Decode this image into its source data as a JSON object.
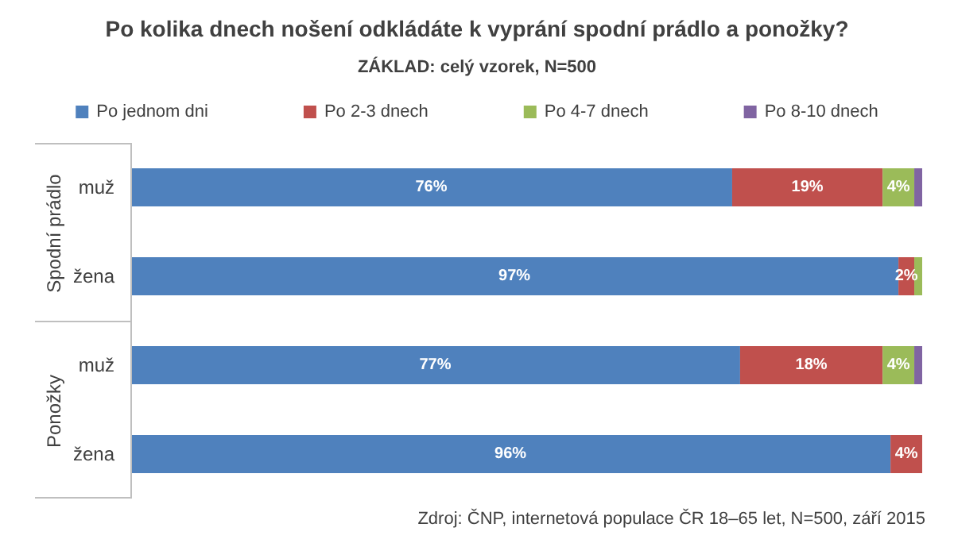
{
  "chart_data": {
    "type": "bar",
    "orientation": "horizontal",
    "stacked": true,
    "title": "Po kolika dnech nošení odkládáte k vyprání spodní prádlo a ponožky?",
    "subtitle": "ZÁKLAD: celý vzorek, N=500",
    "categories": [
      "muž",
      "žena",
      "muž",
      "žena"
    ],
    "xlim": [
      0,
      100
    ],
    "legend": "top",
    "series": [
      {
        "name": "Po jednom dni",
        "color": "#4f81bd",
        "values": [
          76,
          97,
          77,
          96
        ],
        "value_labels": [
          "76%",
          "97%",
          "77%",
          "96%"
        ]
      },
      {
        "name": "Po 2-3 dnech",
        "color": "#c0504d",
        "values": [
          19,
          2,
          18,
          4
        ],
        "value_labels": [
          "19%",
          "2%",
          "18%",
          "4%"
        ]
      },
      {
        "name": "Po 4-7 dnech",
        "color": "#9bbb59",
        "values": [
          4,
          1,
          4,
          0
        ],
        "value_labels": [
          "4%",
          null,
          "4%",
          null
        ]
      },
      {
        "name": "Po 8-10 dnech",
        "color": "#8064a2",
        "values": [
          1,
          0,
          1,
          0
        ],
        "value_labels": [
          null,
          null,
          null,
          null
        ]
      }
    ],
    "annotations": [
      "Spodní prádlo",
      "Ponožky",
      "Zdroj: ČNP, internetová populace ČR 18–65 let, N=500, září 2015"
    ]
  }
}
